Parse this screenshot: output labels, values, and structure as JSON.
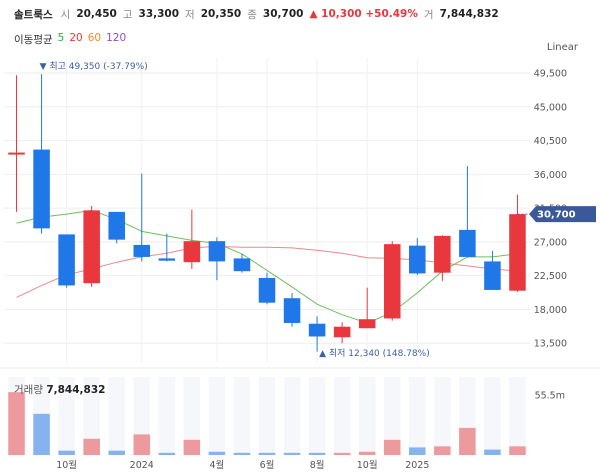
{
  "header": {
    "name": "솔트룩스",
    "open_label": "시",
    "open": "20,450",
    "high_label": "고",
    "high": "33,300",
    "low_label": "저",
    "low": "20,350",
    "close_label": "종",
    "close": "30,700",
    "change": "▲ 10,300 +50.49%",
    "volume_label": "거",
    "volume": "7,844,832"
  },
  "ma": {
    "label": "이동평균",
    "items": [
      {
        "text": "5",
        "color": "#2ab03a"
      },
      {
        "text": "20",
        "color": "#e8383d"
      },
      {
        "text": "60",
        "color": "#f08a24"
      },
      {
        "text": "120",
        "color": "#8a4fc8"
      }
    ]
  },
  "scale_mode": "Linear",
  "colors": {
    "up": "#e8383d",
    "down": "#1f77e8",
    "ma5": "#6cbf5f",
    "ma20": "#e88a8a",
    "tag": "#3b5998"
  },
  "chart_data": {
    "type": "candlestick",
    "y_ticks": [
      "49,500",
      "45,000",
      "40,500",
      "36,000",
      "31,500",
      "27,000",
      "22,500",
      "18,000",
      "13,500"
    ],
    "x_ticks": [
      "10월",
      "2024",
      "4월",
      "6월",
      "8월",
      "10월",
      "2025"
    ],
    "ylim": [
      11000,
      51500
    ],
    "candles": [
      {
        "o": 38900,
        "c": 38900,
        "h": 49200,
        "l": 31000,
        "dir": "up"
      },
      {
        "o": 39300,
        "c": 28800,
        "h": 49350,
        "l": 28100,
        "dir": "down"
      },
      {
        "o": 28000,
        "c": 21200,
        "h": 28000,
        "l": 20900,
        "dir": "down"
      },
      {
        "o": 21500,
        "c": 31200,
        "h": 31800,
        "l": 21000,
        "dir": "up"
      },
      {
        "o": 31000,
        "c": 27300,
        "h": 31000,
        "l": 26800,
        "dir": "down"
      },
      {
        "o": 26600,
        "c": 25000,
        "h": 36100,
        "l": 24400,
        "dir": "down"
      },
      {
        "o": 24800,
        "c": 24500,
        "h": 28100,
        "l": 24400,
        "dir": "down"
      },
      {
        "o": 24300,
        "c": 27100,
        "h": 31300,
        "l": 23400,
        "dir": "up"
      },
      {
        "o": 27100,
        "c": 24400,
        "h": 27600,
        "l": 21900,
        "dir": "down"
      },
      {
        "o": 24800,
        "c": 23100,
        "h": 25400,
        "l": 22900,
        "dir": "down"
      },
      {
        "o": 22200,
        "c": 18900,
        "h": 22900,
        "l": 18700,
        "dir": "down"
      },
      {
        "o": 19500,
        "c": 16200,
        "h": 20200,
        "l": 15700,
        "dir": "down"
      },
      {
        "o": 16100,
        "c": 14400,
        "h": 17100,
        "l": 12400,
        "dir": "down"
      },
      {
        "o": 14300,
        "c": 15700,
        "h": 16300,
        "l": 13500,
        "dir": "up"
      },
      {
        "o": 15500,
        "c": 16700,
        "h": 20900,
        "l": 15500,
        "dir": "up"
      },
      {
        "o": 16800,
        "c": 26700,
        "h": 27100,
        "l": 16500,
        "dir": "up"
      },
      {
        "o": 26500,
        "c": 22800,
        "h": 27500,
        "l": 22600,
        "dir": "down"
      },
      {
        "o": 22900,
        "c": 27800,
        "h": 27900,
        "l": 21800,
        "dir": "up"
      },
      {
        "o": 28600,
        "c": 25000,
        "h": 37100,
        "l": 24900,
        "dir": "down"
      },
      {
        "o": 24400,
        "c": 20600,
        "h": 25800,
        "l": 20600,
        "dir": "down"
      },
      {
        "o": 20500,
        "c": 30700,
        "h": 33300,
        "l": 20350,
        "dir": "up"
      }
    ],
    "ma5": [
      29500,
      30300,
      30700,
      31200,
      30000,
      28400,
      27800,
      27200,
      26800,
      25400,
      23200,
      21000,
      18700,
      17300,
      16200,
      17600,
      20200,
      23100,
      25000,
      25000,
      25400
    ],
    "ma20": [
      19600,
      21200,
      22600,
      23400,
      24300,
      25000,
      25500,
      26200,
      26400,
      26300,
      26300,
      26200,
      25900,
      25500,
      24900,
      24800,
      24600,
      24200,
      23800,
      23400,
      23100
    ],
    "volume_ticks": [
      "55.5m"
    ],
    "volume": [
      {
        "v": 58,
        "dir": "up"
      },
      {
        "v": 38,
        "dir": "down"
      },
      {
        "v": 4,
        "dir": "down"
      },
      {
        "v": 15,
        "dir": "up"
      },
      {
        "v": 4,
        "dir": "down"
      },
      {
        "v": 19,
        "dir": "up"
      },
      {
        "v": 2,
        "dir": "down"
      },
      {
        "v": 14,
        "dir": "up"
      },
      {
        "v": 3,
        "dir": "down"
      },
      {
        "v": 2,
        "dir": "down"
      },
      {
        "v": 2,
        "dir": "down"
      },
      {
        "v": 2,
        "dir": "down"
      },
      {
        "v": 2,
        "dir": "down"
      },
      {
        "v": 2,
        "dir": "up"
      },
      {
        "v": 3,
        "dir": "up"
      },
      {
        "v": 14,
        "dir": "up"
      },
      {
        "v": 7,
        "dir": "down"
      },
      {
        "v": 8,
        "dir": "up"
      },
      {
        "v": 25,
        "dir": "up"
      },
      {
        "v": 5,
        "dir": "down"
      },
      {
        "v": 8,
        "dir": "up"
      }
    ],
    "current_price": "30,700",
    "current_value": 30700,
    "annotations": {
      "high": "▼ 최고 49,350 (-37.79%)",
      "high_value": 49350,
      "low": "▲ 최저 12,340 (148.78%)",
      "low_value": 12340
    }
  },
  "volume_header": {
    "label": "거래량",
    "value": "7,844,832"
  }
}
